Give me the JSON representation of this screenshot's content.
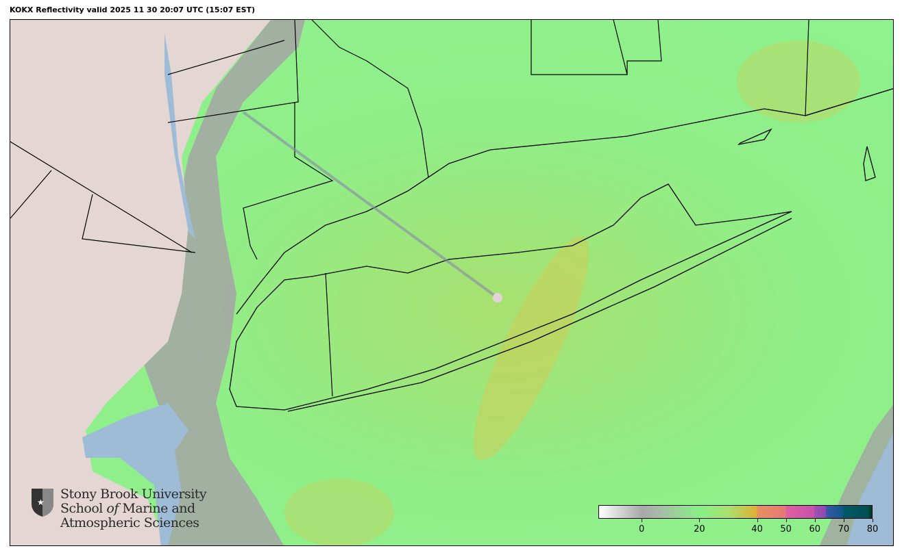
{
  "title": "KOKX Reflectivity valid 2025 11 30 20:07 UTC (15:07 EST)",
  "map": {
    "radar_site": "KOKX",
    "colors": {
      "land": "#e4d6d2",
      "water": "#9fbcd6",
      "echo_light": "#8ef28e",
      "echo_moderate": "#e0b840",
      "clutter": "#9a9a9a"
    }
  },
  "logo": {
    "line1": "Stony Brook University",
    "line2_a": "School ",
    "line2_b": "of",
    "line2_c": " Marine and",
    "line3": "Atmospheric Sciences"
  },
  "colorbar": {
    "unit_range": [
      -15,
      80
    ],
    "ticks": [
      {
        "value": 0,
        "label": "0"
      },
      {
        "value": 20,
        "label": "20"
      },
      {
        "value": 40,
        "label": "40"
      },
      {
        "value": 50,
        "label": "50"
      },
      {
        "value": 60,
        "label": "60"
      },
      {
        "value": 70,
        "label": "70"
      },
      {
        "value": 80,
        "label": "80"
      }
    ],
    "stops": [
      {
        "value": -15,
        "color": "#ffffff"
      },
      {
        "value": 0,
        "color": "#a8a8a8"
      },
      {
        "value": 5,
        "color": "#a8b8a8"
      },
      {
        "value": 20,
        "color": "#88f088"
      },
      {
        "value": 30,
        "color": "#a8e070"
      },
      {
        "value": 40,
        "color": "#e0b030"
      },
      {
        "value": 40.01,
        "color": "#e89060"
      },
      {
        "value": 50,
        "color": "#e87878"
      },
      {
        "value": 50.01,
        "color": "#e060a0"
      },
      {
        "value": 60,
        "color": "#c850a8"
      },
      {
        "value": 60.01,
        "color": "#a050b0"
      },
      {
        "value": 64,
        "color": "#9048b0"
      },
      {
        "value": 64.01,
        "color": "#3858a8"
      },
      {
        "value": 70,
        "color": "#105888"
      },
      {
        "value": 70.01,
        "color": "#005868"
      },
      {
        "value": 79,
        "color": "#005050"
      },
      {
        "value": 79.01,
        "color": "#004030"
      },
      {
        "value": 80,
        "color": "#004030"
      }
    ]
  }
}
